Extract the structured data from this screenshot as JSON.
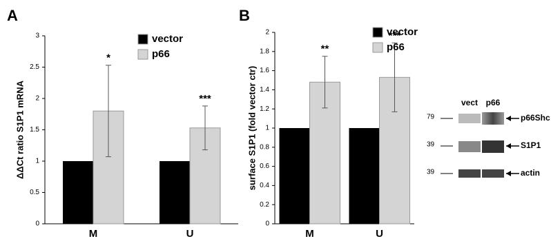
{
  "chart_data": [
    {
      "type": "bar",
      "panel": "A",
      "ylabel": "ΔΔCt ratio S1P1 mRNA",
      "categories": [
        "M",
        "U"
      ],
      "series": [
        {
          "name": "vector",
          "color": "#000000",
          "values": [
            1,
            1
          ]
        },
        {
          "name": "p66",
          "color": "#d4d4d4",
          "values": [
            1.8,
            1.53
          ],
          "errors": [
            0.73,
            0.35
          ]
        }
      ],
      "annotations": [
        "*",
        "***"
      ],
      "ylim": [
        0,
        3
      ],
      "yticks": [
        0,
        0.5,
        1,
        1.5,
        2,
        2.5,
        3
      ]
    },
    {
      "type": "bar",
      "panel": "B",
      "ylabel": "surface S1P1 (fold vector ctr)",
      "categories": [
        "M",
        "U"
      ],
      "series": [
        {
          "name": "vector",
          "color": "#000000",
          "values": [
            1,
            1
          ]
        },
        {
          "name": "p66",
          "color": "#d4d4d4",
          "values": [
            1.48,
            1.53
          ],
          "errors": [
            0.27,
            0.36
          ]
        }
      ],
      "annotations": [
        "**",
        "***"
      ],
      "ylim": [
        0,
        2
      ],
      "yticks": [
        0,
        0.2,
        0.4,
        0.6,
        0.8,
        1,
        1.2,
        1.4,
        1.6,
        1.8,
        2
      ]
    }
  ],
  "blot": {
    "lanes": [
      "vect",
      "p66"
    ],
    "rows": [
      {
        "marker": "79",
        "label": "p66Shc"
      },
      {
        "marker": "39",
        "label": "S1P1"
      },
      {
        "marker": "39",
        "label": "actin"
      }
    ]
  }
}
